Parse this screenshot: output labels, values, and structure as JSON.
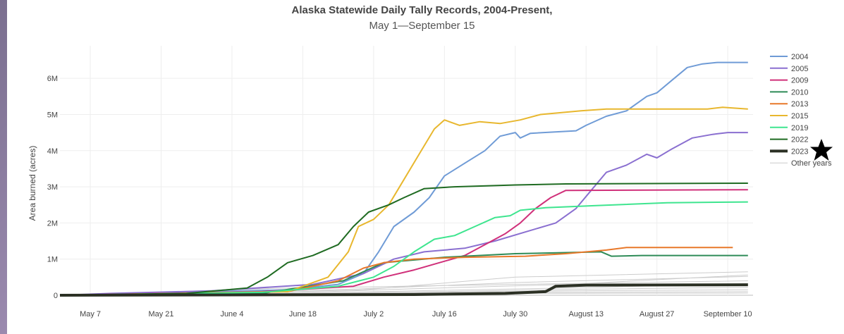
{
  "colors": {
    "background": "#ffffff",
    "grid": "#eeeeee",
    "star": "#000000"
  },
  "chart_data": {
    "type": "line",
    "title": "Alaska Statewide Daily Tally Records, 2004-Present,",
    "subtitle": "May 1—September 15",
    "ylabel": "Area burned (acres)",
    "xlabel": "",
    "x_range": [
      "May 1",
      "Sep 15"
    ],
    "ylim": [
      0,
      6900000
    ],
    "grid": true,
    "legend_position": "right",
    "x_ticks": [
      {
        "day": 6,
        "label": "May 7"
      },
      {
        "day": 20,
        "label": "May 21"
      },
      {
        "day": 34,
        "label": "June 4"
      },
      {
        "day": 48,
        "label": "June 18"
      },
      {
        "day": 62,
        "label": "July 2"
      },
      {
        "day": 76,
        "label": "July 16"
      },
      {
        "day": 90,
        "label": "July 30"
      },
      {
        "day": 104,
        "label": "August 13"
      },
      {
        "day": 118,
        "label": "August 27"
      },
      {
        "day": 132,
        "label": "September 10"
      }
    ],
    "y_ticks": [
      {
        "value": 0,
        "label": "0"
      },
      {
        "value": 1000000,
        "label": "1M"
      },
      {
        "value": 2000000,
        "label": "2M"
      },
      {
        "value": 3000000,
        "label": "3M"
      },
      {
        "value": 4000000,
        "label": "4M"
      },
      {
        "value": 5000000,
        "label": "5M"
      },
      {
        "value": 6000000,
        "label": "6M"
      }
    ],
    "series": [
      {
        "name": "2004",
        "color": "#6f9bd6",
        "width": 2,
        "points": [
          [
            0,
            0
          ],
          [
            45,
            150000
          ],
          [
            55,
            300000
          ],
          [
            60,
            600000
          ],
          [
            63,
            1200000
          ],
          [
            66,
            1900000
          ],
          [
            70,
            2300000
          ],
          [
            73,
            2700000
          ],
          [
            76,
            3300000
          ],
          [
            80,
            3650000
          ],
          [
            84,
            4000000
          ],
          [
            87,
            4400000
          ],
          [
            90,
            4500000
          ],
          [
            91,
            4350000
          ],
          [
            93,
            4480000
          ],
          [
            102,
            4550000
          ],
          [
            104,
            4700000
          ],
          [
            108,
            4950000
          ],
          [
            112,
            5100000
          ],
          [
            116,
            5500000
          ],
          [
            118,
            5600000
          ],
          [
            121,
            5950000
          ],
          [
            124,
            6300000
          ],
          [
            127,
            6400000
          ],
          [
            130,
            6440000
          ],
          [
            136,
            6440000
          ]
        ]
      },
      {
        "name": "2005",
        "color": "#8a6fd0",
        "width": 2,
        "points": [
          [
            0,
            0
          ],
          [
            10,
            50000
          ],
          [
            30,
            120000
          ],
          [
            50,
            300000
          ],
          [
            60,
            600000
          ],
          [
            66,
            1000000
          ],
          [
            72,
            1200000
          ],
          [
            80,
            1300000
          ],
          [
            86,
            1500000
          ],
          [
            92,
            1750000
          ],
          [
            98,
            2000000
          ],
          [
            102,
            2400000
          ],
          [
            105,
            2900000
          ],
          [
            108,
            3400000
          ],
          [
            112,
            3600000
          ],
          [
            116,
            3900000
          ],
          [
            118,
            3800000
          ],
          [
            121,
            4050000
          ],
          [
            125,
            4350000
          ],
          [
            129,
            4450000
          ],
          [
            132,
            4500000
          ],
          [
            136,
            4500000
          ]
        ]
      },
      {
        "name": "2009",
        "color": "#d0307a",
        "width": 2,
        "points": [
          [
            0,
            0
          ],
          [
            40,
            100000
          ],
          [
            58,
            250000
          ],
          [
            64,
            500000
          ],
          [
            70,
            700000
          ],
          [
            75,
            900000
          ],
          [
            80,
            1100000
          ],
          [
            84,
            1400000
          ],
          [
            88,
            1700000
          ],
          [
            91,
            2000000
          ],
          [
            94,
            2400000
          ],
          [
            97,
            2700000
          ],
          [
            100,
            2900000
          ],
          [
            136,
            2920000
          ]
        ]
      },
      {
        "name": "2010",
        "color": "#2e8b57",
        "width": 2,
        "points": [
          [
            0,
            0
          ],
          [
            40,
            50000
          ],
          [
            56,
            400000
          ],
          [
            64,
            900000
          ],
          [
            76,
            1050000
          ],
          [
            90,
            1150000
          ],
          [
            100,
            1180000
          ],
          [
            107,
            1200000
          ],
          [
            109,
            1080000
          ],
          [
            115,
            1100000
          ],
          [
            136,
            1100000
          ]
        ]
      },
      {
        "name": "2013",
        "color": "#e8782a",
        "width": 2,
        "points": [
          [
            0,
            0
          ],
          [
            45,
            100000
          ],
          [
            55,
            400000
          ],
          [
            60,
            750000
          ],
          [
            64,
            900000
          ],
          [
            70,
            1000000
          ],
          [
            80,
            1050000
          ],
          [
            92,
            1080000
          ],
          [
            100,
            1150000
          ],
          [
            108,
            1250000
          ],
          [
            112,
            1320000
          ],
          [
            133,
            1320000
          ]
        ]
      },
      {
        "name": "2015",
        "color": "#e8b72e",
        "width": 2,
        "points": [
          [
            0,
            0
          ],
          [
            45,
            100000
          ],
          [
            53,
            500000
          ],
          [
            57,
            1200000
          ],
          [
            59,
            1900000
          ],
          [
            62,
            2100000
          ],
          [
            65,
            2500000
          ],
          [
            68,
            3200000
          ],
          [
            71,
            3900000
          ],
          [
            74,
            4600000
          ],
          [
            76,
            4850000
          ],
          [
            79,
            4700000
          ],
          [
            83,
            4800000
          ],
          [
            87,
            4750000
          ],
          [
            91,
            4850000
          ],
          [
            95,
            5000000
          ],
          [
            99,
            5050000
          ],
          [
            103,
            5100000
          ],
          [
            108,
            5150000
          ],
          [
            128,
            5150000
          ],
          [
            131,
            5200000
          ],
          [
            136,
            5150000
          ]
        ]
      },
      {
        "name": "2019",
        "color": "#3ee58f",
        "width": 2,
        "points": [
          [
            0,
            0
          ],
          [
            40,
            80000
          ],
          [
            55,
            250000
          ],
          [
            62,
            500000
          ],
          [
            66,
            800000
          ],
          [
            70,
            1200000
          ],
          [
            74,
            1550000
          ],
          [
            78,
            1650000
          ],
          [
            82,
            1900000
          ],
          [
            86,
            2150000
          ],
          [
            89,
            2200000
          ],
          [
            91,
            2350000
          ],
          [
            96,
            2420000
          ],
          [
            106,
            2480000
          ],
          [
            120,
            2560000
          ],
          [
            136,
            2580000
          ]
        ]
      },
      {
        "name": "2022",
        "color": "#1f6b22",
        "width": 2,
        "points": [
          [
            0,
            0
          ],
          [
            25,
            50000
          ],
          [
            37,
            200000
          ],
          [
            41,
            500000
          ],
          [
            45,
            900000
          ],
          [
            50,
            1100000
          ],
          [
            55,
            1400000
          ],
          [
            58,
            1900000
          ],
          [
            61,
            2300000
          ],
          [
            65,
            2500000
          ],
          [
            68,
            2700000
          ],
          [
            72,
            2950000
          ],
          [
            78,
            3000000
          ],
          [
            90,
            3050000
          ],
          [
            100,
            3080000
          ],
          [
            136,
            3100000
          ]
        ]
      },
      {
        "name": "2023",
        "color": "#2b3024",
        "width": 4,
        "points": [
          [
            0,
            0
          ],
          [
            70,
            20000
          ],
          [
            88,
            50000
          ],
          [
            96,
            100000
          ],
          [
            98,
            250000
          ],
          [
            104,
            280000
          ],
          [
            136,
            290000
          ]
        ]
      }
    ],
    "other_years": {
      "name": "Other years",
      "color": "#cccccc",
      "lines": [
        [
          [
            0,
            0
          ],
          [
            30,
            40000
          ],
          [
            60,
            150000
          ],
          [
            90,
            500000
          ],
          [
            136,
            650000
          ]
        ],
        [
          [
            0,
            0
          ],
          [
            30,
            60000
          ],
          [
            60,
            180000
          ],
          [
            90,
            350000
          ],
          [
            136,
            520000
          ]
        ],
        [
          [
            0,
            0
          ],
          [
            40,
            40000
          ],
          [
            70,
            180000
          ],
          [
            100,
            300000
          ],
          [
            136,
            560000
          ]
        ],
        [
          [
            0,
            0
          ],
          [
            40,
            30000
          ],
          [
            70,
            120000
          ],
          [
            100,
            200000
          ],
          [
            136,
            320000
          ]
        ],
        [
          [
            0,
            0
          ],
          [
            30,
            20000
          ],
          [
            70,
            90000
          ],
          [
            100,
            160000
          ],
          [
            136,
            220000
          ]
        ],
        [
          [
            0,
            0
          ],
          [
            30,
            20000
          ],
          [
            60,
            60000
          ],
          [
            100,
            120000
          ],
          [
            136,
            150000
          ]
        ],
        [
          [
            0,
            0
          ],
          [
            40,
            15000
          ],
          [
            80,
            70000
          ],
          [
            136,
            100000
          ]
        ],
        [
          [
            0,
            0
          ],
          [
            40,
            10000
          ],
          [
            80,
            50000
          ],
          [
            136,
            60000
          ]
        ],
        [
          [
            0,
            0
          ],
          [
            45,
            200000
          ],
          [
            60,
            230000
          ],
          [
            90,
            300000
          ],
          [
            136,
            400000
          ]
        ]
      ]
    }
  }
}
